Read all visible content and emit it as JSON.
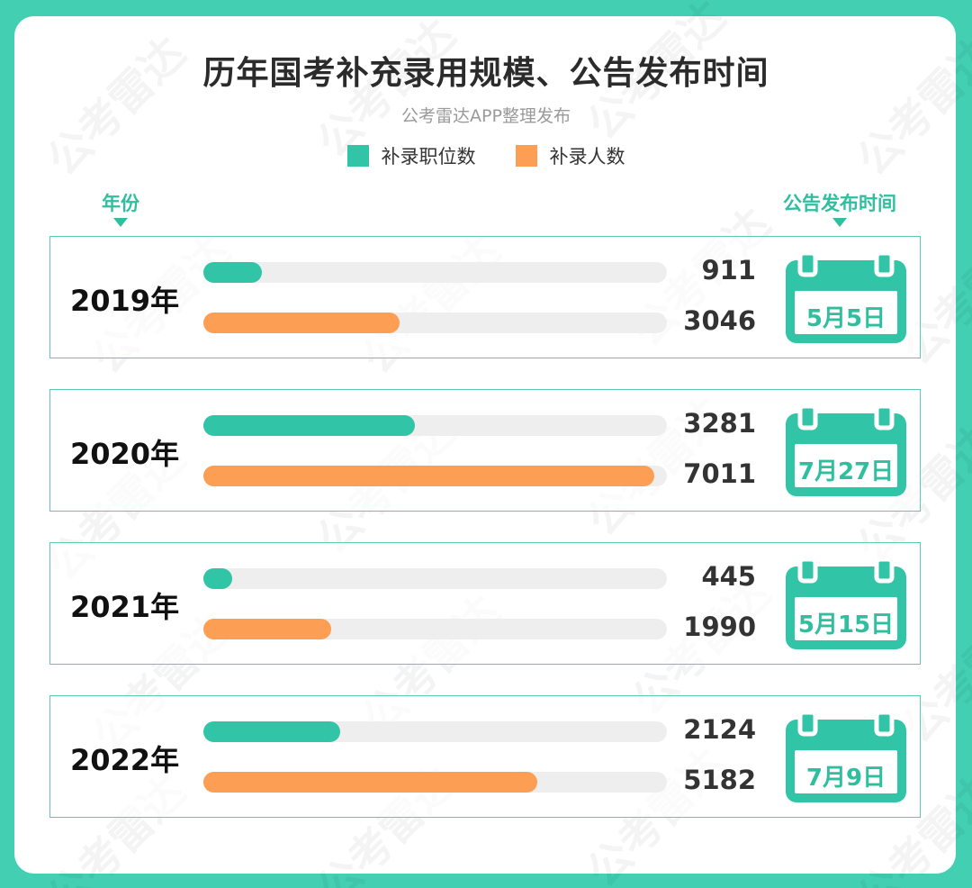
{
  "header": {
    "title": "历年国考补充录用规模、公告发布时间",
    "subtitle": "公考雷达APP整理发布"
  },
  "legend": [
    {
      "label": "补录职位数",
      "color": "#32c4a6"
    },
    {
      "label": "补录人数",
      "color": "#fd9e55"
    }
  ],
  "columns": {
    "year_label": "年份",
    "date_label": "公告发布时间"
  },
  "rows": [
    {
      "year": "2019年",
      "positions": "911",
      "people": "3046",
      "date": "5月5日"
    },
    {
      "year": "2020年",
      "positions": "3281",
      "people": "7011",
      "date": "7月27日"
    },
    {
      "year": "2021年",
      "positions": "445",
      "people": "1990",
      "date": "5月15日"
    },
    {
      "year": "2022年",
      "positions": "2124",
      "people": "5182",
      "date": "7月9日"
    }
  ],
  "watermark": "公考雷达",
  "colors": {
    "frame": "#42cfb2",
    "accent": "#32c4a6",
    "orange": "#fd9e55",
    "track": "#eeeeee"
  },
  "chart_data": {
    "type": "bar",
    "orientation": "horizontal",
    "title": "历年国考补充录用规模、公告发布时间",
    "subtitle": "公考雷达APP整理发布",
    "categories": [
      "2019年",
      "2020年",
      "2021年",
      "2022年"
    ],
    "series": [
      {
        "name": "补录职位数",
        "color": "#32c4a6",
        "values": [
          911,
          3281,
          445,
          2124
        ]
      },
      {
        "name": "补录人数",
        "color": "#fd9e55",
        "values": [
          3046,
          7011,
          1990,
          5182
        ]
      }
    ],
    "annotations": {
      "公告发布时间": [
        "5月5日",
        "7月27日",
        "5月15日",
        "7月9日"
      ]
    },
    "xlim": [
      0,
      7200
    ],
    "legend_position": "top",
    "grid": false
  }
}
